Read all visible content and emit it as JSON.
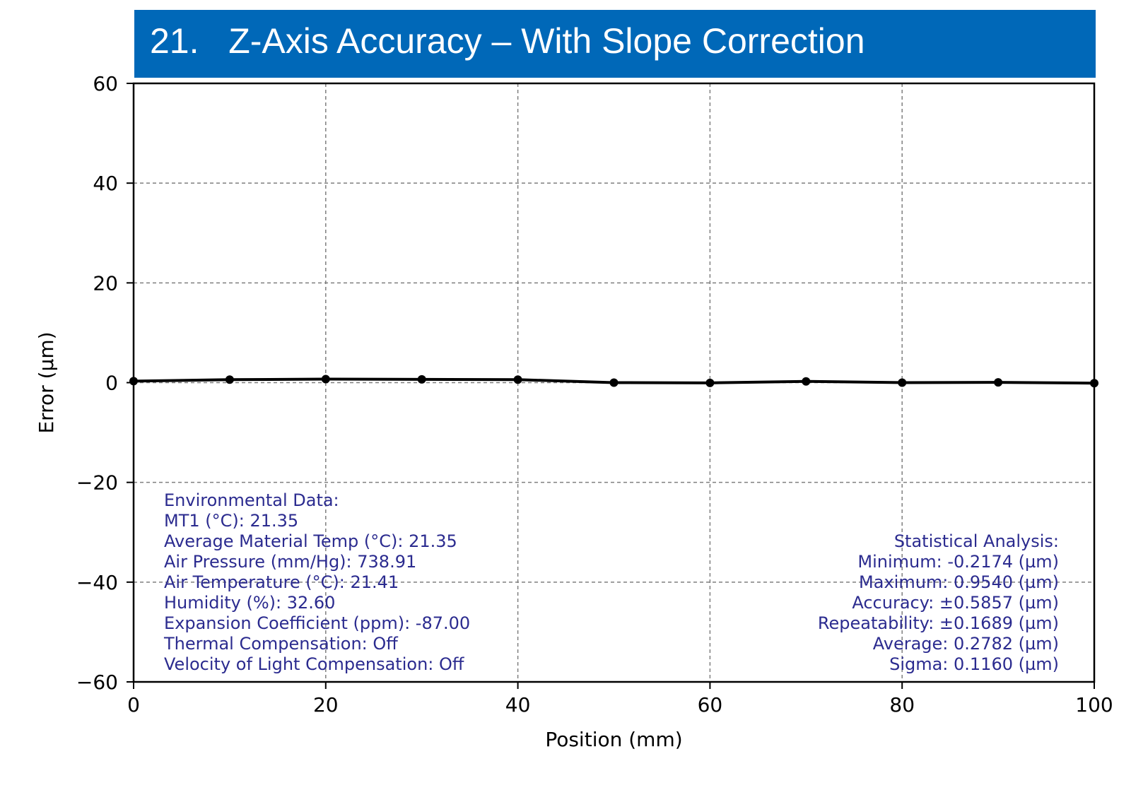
{
  "title": {
    "number": "21.",
    "text": "Z-Axis Accuracy – With Slope Correction",
    "background": "#0068b8"
  },
  "colors": {
    "line": "#000000",
    "grid": "#7f7f7f",
    "annotation": "#2b2b8f"
  },
  "chart_data": {
    "type": "line",
    "title": "Z-Axis Accuracy – With Slope Correction",
    "xlabel": "Position (mm)",
    "ylabel": "Error (µm)",
    "xlim": [
      0,
      100
    ],
    "ylim": [
      -60,
      60
    ],
    "xticks": [
      0,
      20,
      40,
      60,
      80,
      100
    ],
    "yticks": [
      -60,
      -40,
      -20,
      0,
      20,
      40,
      60
    ],
    "grid": true,
    "series": [
      {
        "x": [
          0,
          10,
          20,
          30,
          40,
          50,
          60,
          70,
          80,
          90,
          100
        ],
        "values": [
          0.3,
          0.6,
          0.7,
          0.65,
          0.6,
          0.0,
          -0.05,
          0.25,
          0.0,
          0.05,
          -0.1
        ]
      }
    ],
    "annotations": {
      "environmental": [
        "Environmental Data:",
        "MT1 (°C): 21.35",
        "Average Material Temp (°C): 21.35",
        "Air Pressure (mm/Hg): 738.91",
        "Air Temperature (°C): 21.41",
        "Humidity (%): 32.60",
        "Expansion Coefficient (ppm): -87.00",
        "Thermal Compensation: Off",
        "Velocity of Light Compensation: Off"
      ],
      "statistics": [
        "Statistical Analysis:",
        "Minimum: -0.2174 (µm)",
        "Maximum: 0.9540 (µm)",
        "Accuracy: ±0.5857 (µm)",
        "Repeatability: ±0.1689 (µm)",
        "Average: 0.2782 (µm)",
        "Sigma: 0.1160 (µm)"
      ]
    }
  }
}
